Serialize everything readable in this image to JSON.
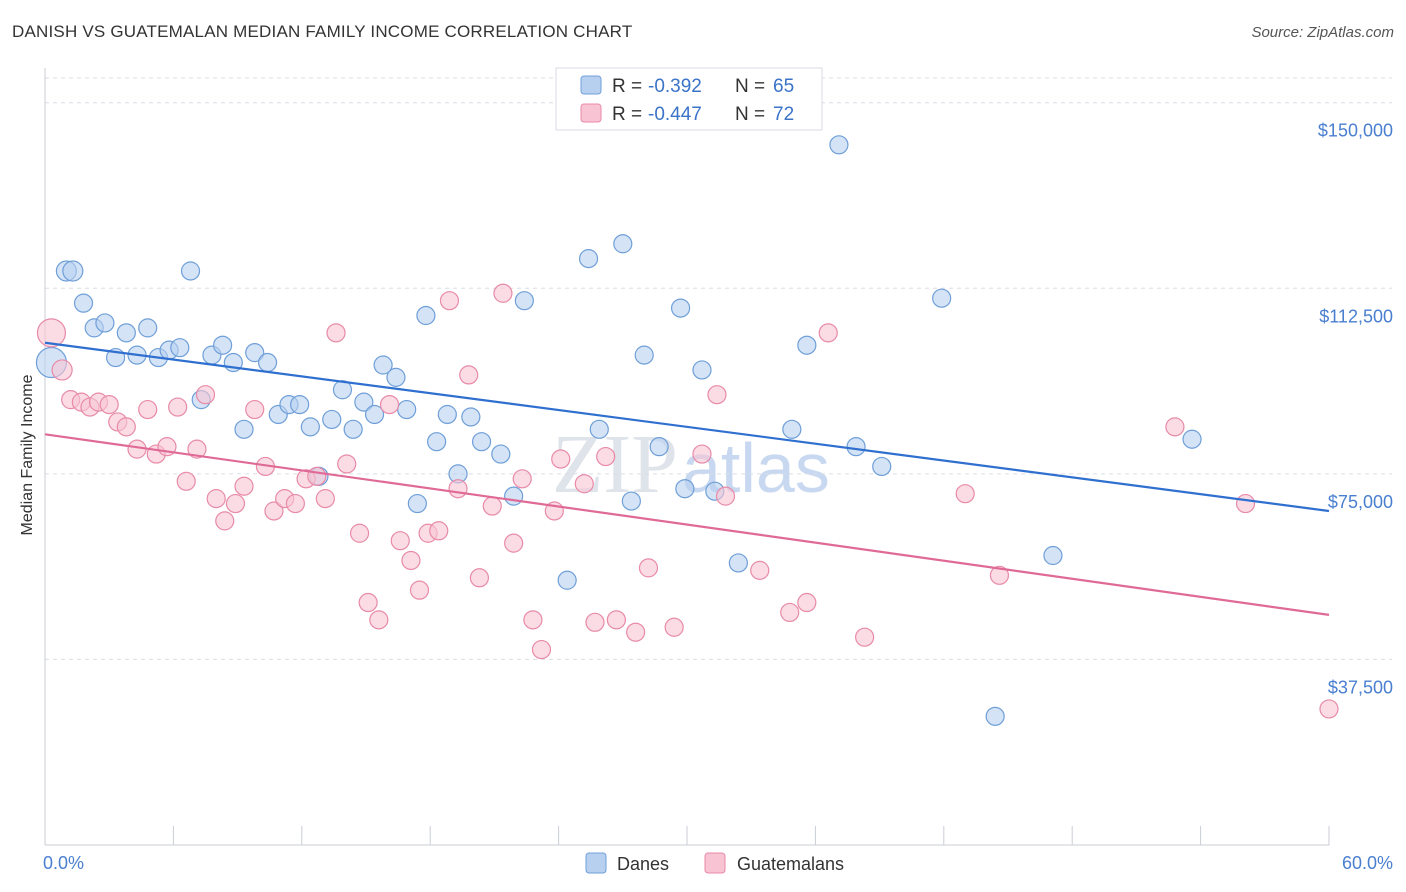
{
  "title": "DANISH VS GUATEMALAN MEDIAN FAMILY INCOME CORRELATION CHART",
  "source": "Source: ZipAtlas.com",
  "watermark": {
    "zip": "ZIP",
    "atlas": "atlas"
  },
  "colors": {
    "danes_fill": "#b8d0f0",
    "danes_stroke": "#6f9fd8",
    "danes_line": "#2f6fcf",
    "guat_fill": "#f8c4d4",
    "guat_stroke": "#e88aa8",
    "guat_line": "#e06a96",
    "grid": "#d9dde5",
    "tick_label": "#4a7fd0"
  },
  "legend": {
    "rows": [
      {
        "r_label": "R =",
        "r_value": "-0.392",
        "n_label": "N =",
        "n_value": "65"
      },
      {
        "r_label": "R =",
        "r_value": "-0.447",
        "n_label": "N =",
        "n_value": "72"
      }
    ]
  },
  "bottom_legend": [
    "Danes",
    "Guatemalans"
  ],
  "chart_data": {
    "type": "scatter",
    "title": "DANISH VS GUATEMALAN MEDIAN FAMILY INCOME CORRELATION CHART",
    "xlabel": "",
    "ylabel": "Median Family Income",
    "xlim": [
      0,
      60
    ],
    "ylim": [
      0,
      155000
    ],
    "x_tick_labels": [
      "0.0%",
      "60.0%"
    ],
    "y_ticks": [
      37500,
      75000,
      112500,
      150000
    ],
    "y_tick_labels": [
      "$37,500",
      "$75,000",
      "$112,500",
      "$150,000"
    ],
    "legend_position": "top-center",
    "grid": true,
    "series": [
      {
        "name": "Danes",
        "trend": {
          "x": [
            0,
            60
          ],
          "y": [
            101500,
            67500
          ]
        },
        "points": [
          [
            0.3,
            97500
          ],
          [
            1.0,
            116000
          ],
          [
            1.3,
            116000
          ],
          [
            1.8,
            109500
          ],
          [
            2.3,
            104500
          ],
          [
            2.8,
            105500
          ],
          [
            3.3,
            98500
          ],
          [
            3.8,
            103500
          ],
          [
            4.3,
            99000
          ],
          [
            4.8,
            104500
          ],
          [
            5.3,
            98500
          ],
          [
            5.8,
            100000
          ],
          [
            6.3,
            100500
          ],
          [
            6.8,
            116000
          ],
          [
            7.3,
            90000
          ],
          [
            7.8,
            99000
          ],
          [
            8.3,
            101000
          ],
          [
            8.8,
            97500
          ],
          [
            9.3,
            84000
          ],
          [
            9.8,
            99500
          ],
          [
            10.4,
            97500
          ],
          [
            10.9,
            87000
          ],
          [
            11.4,
            89000
          ],
          [
            11.9,
            89000
          ],
          [
            12.4,
            84500
          ],
          [
            12.8,
            74500
          ],
          [
            13.4,
            86000
          ],
          [
            13.9,
            92000
          ],
          [
            14.4,
            84000
          ],
          [
            14.9,
            89500
          ],
          [
            15.4,
            87000
          ],
          [
            15.8,
            97000
          ],
          [
            16.4,
            94500
          ],
          [
            16.9,
            88000
          ],
          [
            17.4,
            69000
          ],
          [
            17.8,
            107000
          ],
          [
            18.3,
            81500
          ],
          [
            18.8,
            87000
          ],
          [
            19.3,
            75000
          ],
          [
            19.9,
            86500
          ],
          [
            20.4,
            81500
          ],
          [
            21.3,
            79000
          ],
          [
            21.9,
            70500
          ],
          [
            22.4,
            110000
          ],
          [
            24.4,
            53500
          ],
          [
            25.4,
            118500
          ],
          [
            25.9,
            84000
          ],
          [
            27.0,
            121500
          ],
          [
            27.4,
            69500
          ],
          [
            28.0,
            99000
          ],
          [
            28.7,
            80500
          ],
          [
            29.7,
            108500
          ],
          [
            29.9,
            72000
          ],
          [
            30.7,
            96000
          ],
          [
            31.3,
            71500
          ],
          [
            32.4,
            57000
          ],
          [
            34.9,
            84000
          ],
          [
            35.6,
            101000
          ],
          [
            37.1,
            141500
          ],
          [
            37.9,
            80500
          ],
          [
            39.1,
            76500
          ],
          [
            41.9,
            110500
          ],
          [
            44.4,
            26000
          ],
          [
            47.1,
            58500
          ],
          [
            53.6,
            82000
          ]
        ]
      },
      {
        "name": "Guatemalans",
        "trend": {
          "x": [
            0,
            60
          ],
          "y": [
            83000,
            46500
          ]
        },
        "points": [
          [
            0.3,
            103500
          ],
          [
            0.8,
            96000
          ],
          [
            1.2,
            90000
          ],
          [
            1.7,
            89500
          ],
          [
            2.1,
            88500
          ],
          [
            2.5,
            89500
          ],
          [
            3.0,
            89000
          ],
          [
            3.4,
            85500
          ],
          [
            3.8,
            84500
          ],
          [
            4.3,
            80000
          ],
          [
            4.8,
            88000
          ],
          [
            5.2,
            79000
          ],
          [
            5.7,
            80500
          ],
          [
            6.2,
            88500
          ],
          [
            6.6,
            73500
          ],
          [
            7.1,
            80000
          ],
          [
            7.5,
            91000
          ],
          [
            8.0,
            70000
          ],
          [
            8.4,
            65500
          ],
          [
            8.9,
            69000
          ],
          [
            9.3,
            72500
          ],
          [
            9.8,
            88000
          ],
          [
            10.3,
            76500
          ],
          [
            10.7,
            67500
          ],
          [
            11.2,
            70000
          ],
          [
            11.7,
            69000
          ],
          [
            12.2,
            74000
          ],
          [
            12.7,
            74500
          ],
          [
            13.1,
            70000
          ],
          [
            13.6,
            103500
          ],
          [
            14.1,
            77000
          ],
          [
            14.7,
            63000
          ],
          [
            15.1,
            49000
          ],
          [
            15.6,
            45500
          ],
          [
            16.1,
            89000
          ],
          [
            16.6,
            61500
          ],
          [
            17.1,
            57500
          ],
          [
            17.5,
            51500
          ],
          [
            17.9,
            63000
          ],
          [
            18.4,
            63500
          ],
          [
            18.9,
            110000
          ],
          [
            19.3,
            72000
          ],
          [
            19.8,
            95000
          ],
          [
            20.3,
            54000
          ],
          [
            20.9,
            68500
          ],
          [
            21.4,
            111500
          ],
          [
            21.9,
            61000
          ],
          [
            22.3,
            74000
          ],
          [
            22.8,
            45500
          ],
          [
            23.2,
            39500
          ],
          [
            23.8,
            67500
          ],
          [
            24.1,
            78000
          ],
          [
            25.2,
            73000
          ],
          [
            25.7,
            45000
          ],
          [
            26.2,
            78500
          ],
          [
            26.7,
            45500
          ],
          [
            27.6,
            43000
          ],
          [
            28.2,
            56000
          ],
          [
            29.4,
            44000
          ],
          [
            30.7,
            79000
          ],
          [
            31.4,
            91000
          ],
          [
            31.8,
            70500
          ],
          [
            33.4,
            55500
          ],
          [
            34.8,
            47000
          ],
          [
            35.6,
            49000
          ],
          [
            36.6,
            103500
          ],
          [
            38.3,
            42000
          ],
          [
            43.0,
            71000
          ],
          [
            44.6,
            54500
          ],
          [
            52.8,
            84500
          ],
          [
            56.1,
            69000
          ],
          [
            60.0,
            27500
          ]
        ]
      }
    ]
  }
}
